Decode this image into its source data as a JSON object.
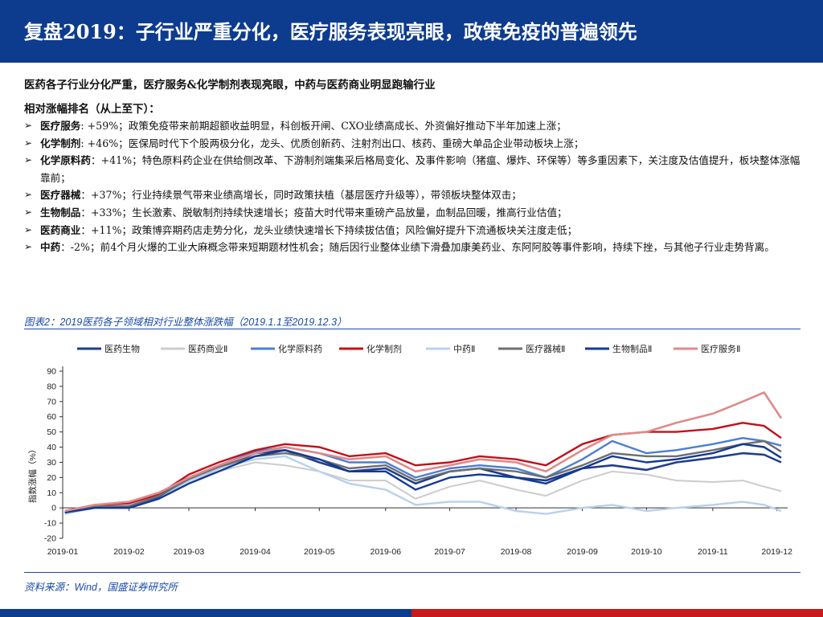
{
  "header": {
    "title": "复盘2019：子行业严重分化，医疗服务表现亮眼，政策免疫的普遍领先"
  },
  "summary": "医药各子行业分化严重，医疗服务&化学制剂表现亮眼，中药与医药商业明显跑输行业",
  "ranking_title": "相对涨幅排名（从上至下）：",
  "items": [
    {
      "name": "医疗服务",
      "sep": ": ",
      "text": "+59%；政策免疫带来前期超额收益明显，科创板开闸、CXO业绩高成长、外资偏好推动下半年加速上涨；"
    },
    {
      "name": "化学制剂",
      "sep": ": ",
      "text": "+46%；医保局时代下个股两极分化，龙头、优质创新药、注射剂出口、核药、重磅大单品企业带动板块上涨；"
    },
    {
      "name": "化学原料药",
      "sep": "：",
      "text": "+41%；特色原料药企业在供给侧改革、下游制剂端集采后格局变化、及事件影响（猪瘟、爆炸、环保等）等多重因素下，关注度及估值提升，板块整体涨幅靠前；"
    },
    {
      "name": "医疗器械",
      "sep": "：",
      "text": "+37%；行业持续景气带来业绩高增长，同时政策扶植（基层医疗升级等），带领板块整体双击；"
    },
    {
      "name": "生物制品",
      "sep": "：",
      "text": "+33%；生长激素、脱敏制剂持续快速增长；疫苗大时代带来重磅产品放量，血制品回暖，推高行业估值；"
    },
    {
      "name": "医药商业",
      "sep": "：",
      "text": "+11%；政策博弈期药店走势分化，龙头业绩快速增长下持续拔估值；风险偏好提升下流通板块关注度走低；"
    },
    {
      "name": "中药",
      "sep": "：",
      "text": "-2%；前4个月火爆的工业大麻概念带来短期题材性机会；随后因行业整体业绩下滑叠加康美药业、东阿阿胶等事件影响，持续下挫，与其他子行业走势背离。"
    }
  ],
  "figure_caption": "图表2：2019医药各子领域相对行业整体涨跌幅（2019.1.1至2019.12.3）",
  "source": "资料来源：Wind，国盛证券研究所",
  "colors": {
    "header_blue": "#0d3b8e",
    "accent_red": "#c61b1b",
    "caption_blue": "#1a4aa8"
  },
  "chart_data": {
    "type": "line",
    "ylabel": "指数涨幅（%）",
    "ylim": [
      -20,
      90
    ],
    "yticks": [
      -20,
      -10,
      0,
      10,
      20,
      30,
      40,
      50,
      60,
      70,
      80,
      90
    ],
    "x_tick_labels": [
      "2019-01",
      "2019-02",
      "2019-03",
      "2019-04",
      "2019-05",
      "2019-06",
      "2019-07",
      "2019-08",
      "2019-09",
      "2019-10",
      "2019-11",
      "2019-12"
    ],
    "x": [
      "2019-01-02",
      "2019-01-16",
      "2019-02-01",
      "2019-02-15",
      "2019-03-01",
      "2019-03-15",
      "2019-04-01",
      "2019-04-15",
      "2019-05-01",
      "2019-05-15",
      "2019-06-01",
      "2019-06-15",
      "2019-07-01",
      "2019-07-15",
      "2019-08-01",
      "2019-08-15",
      "2019-09-01",
      "2019-09-15",
      "2019-10-01",
      "2019-10-15",
      "2019-11-01",
      "2019-11-15",
      "2019-11-25",
      "2019-12-03"
    ],
    "series": [
      {
        "name": "医药生物",
        "color": "#1f3d8c",
        "width": 2.6,
        "values": [
          -3,
          1,
          0,
          7,
          18,
          26,
          36,
          38,
          30,
          24,
          26,
          16,
          24,
          26,
          20,
          18,
          26,
          28,
          25,
          30,
          33,
          36,
          35,
          30
        ]
      },
      {
        "name": "医药商业Ⅱ",
        "color": "#cccccc",
        "width": 2.0,
        "values": [
          -3,
          2,
          2,
          9,
          18,
          24,
          30,
          28,
          24,
          18,
          18,
          6,
          14,
          18,
          12,
          8,
          18,
          24,
          22,
          18,
          17,
          18,
          14,
          11
        ]
      },
      {
        "name": "化学原料药",
        "color": "#4a7fd4",
        "width": 2.4,
        "values": [
          -3,
          1,
          1,
          8,
          20,
          28,
          37,
          40,
          36,
          30,
          30,
          20,
          26,
          28,
          26,
          20,
          32,
          44,
          36,
          38,
          42,
          46,
          44,
          41
        ]
      },
      {
        "name": "化学制剂",
        "color": "#c0101a",
        "width": 2.4,
        "values": [
          -2,
          2,
          3,
          9,
          22,
          30,
          38,
          42,
          40,
          34,
          36,
          28,
          30,
          34,
          32,
          28,
          42,
          48,
          50,
          50,
          52,
          56,
          54,
          46
        ]
      },
      {
        "name": "中药Ⅱ",
        "color": "#b8d0ee",
        "width": 2.4,
        "values": [
          -4,
          0,
          0,
          6,
          18,
          26,
          32,
          34,
          24,
          16,
          12,
          2,
          4,
          4,
          -2,
          -4,
          0,
          2,
          -2,
          0,
          2,
          4,
          2,
          -2
        ]
      },
      {
        "name": "医疗器械Ⅱ",
        "color": "#6e6e6e",
        "width": 2.4,
        "values": [
          -3,
          1,
          1,
          8,
          19,
          27,
          34,
          36,
          32,
          26,
          28,
          18,
          24,
          26,
          24,
          20,
          28,
          36,
          34,
          34,
          38,
          42,
          44,
          37
        ]
      },
      {
        "name": "生物制品Ⅱ",
        "color": "#123a94",
        "width": 2.4,
        "values": [
          -3,
          0,
          0,
          6,
          16,
          24,
          34,
          38,
          32,
          24,
          24,
          12,
          20,
          22,
          20,
          16,
          26,
          34,
          30,
          32,
          36,
          42,
          40,
          33
        ]
      },
      {
        "name": "医疗服务Ⅱ",
        "color": "#e08a8a",
        "width": 2.6,
        "values": [
          -2,
          2,
          4,
          10,
          20,
          28,
          36,
          40,
          36,
          32,
          34,
          24,
          28,
          32,
          30,
          24,
          38,
          48,
          50,
          56,
          62,
          70,
          76,
          59
        ]
      }
    ],
    "grid": false,
    "legend_position": "top"
  }
}
